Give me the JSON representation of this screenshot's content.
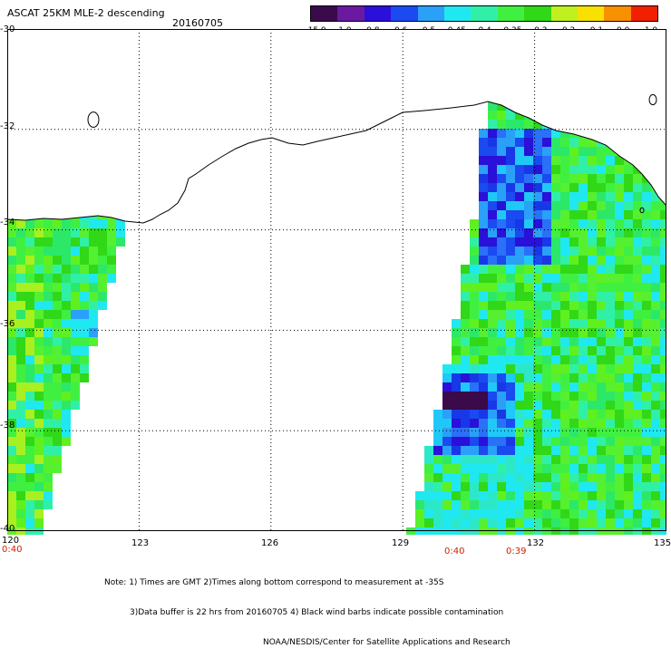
{
  "title": "ASCAT 25KM MLE-2 descending",
  "date": "20160705",
  "colorbar": {
    "labels": [
      "-15.0",
      "-1.0",
      "-0.8",
      "-0.6",
      "-0.5",
      "-0.45",
      "-0.4",
      "-0.35",
      "-0.3",
      "-0.2",
      "-0.1",
      "0.0",
      "1.0"
    ],
    "colors": [
      "#3a0a4a",
      "#6a1aa0",
      "#2a10d8",
      "#1a4af0",
      "#2aa0f8",
      "#20e8f0",
      "#30f0a8",
      "#40f040",
      "#30d818",
      "#c0f020",
      "#f8e000",
      "#f89000",
      "#f02000"
    ]
  },
  "lat_labels": [
    "-30",
    "-32",
    "-34",
    "-36",
    "-38",
    "-40"
  ],
  "lon_labels": [
    "120",
    "123",
    "126",
    "129",
    "132",
    "135"
  ],
  "time_labels": [
    "0:40",
    "0:40",
    "0:39"
  ],
  "notes": [
    "Note: 1) Times are GMT 2)Times along bottom correspond to measurement at -35S",
    "3)Data buffer is 22 hrs from 20160705 4) Black wind barbs indicate possible contamination",
    "NOAA/NESDIS/Center for Satellite Applications and Research"
  ],
  "colors": {
    "background": "#ffffff",
    "grid": "#000000",
    "coast": "#000000",
    "land": "#ffffff",
    "label_red": "#cc2200"
  },
  "icons": [
    "colorbar",
    "coastline",
    "lat-lon-grid"
  ]
}
